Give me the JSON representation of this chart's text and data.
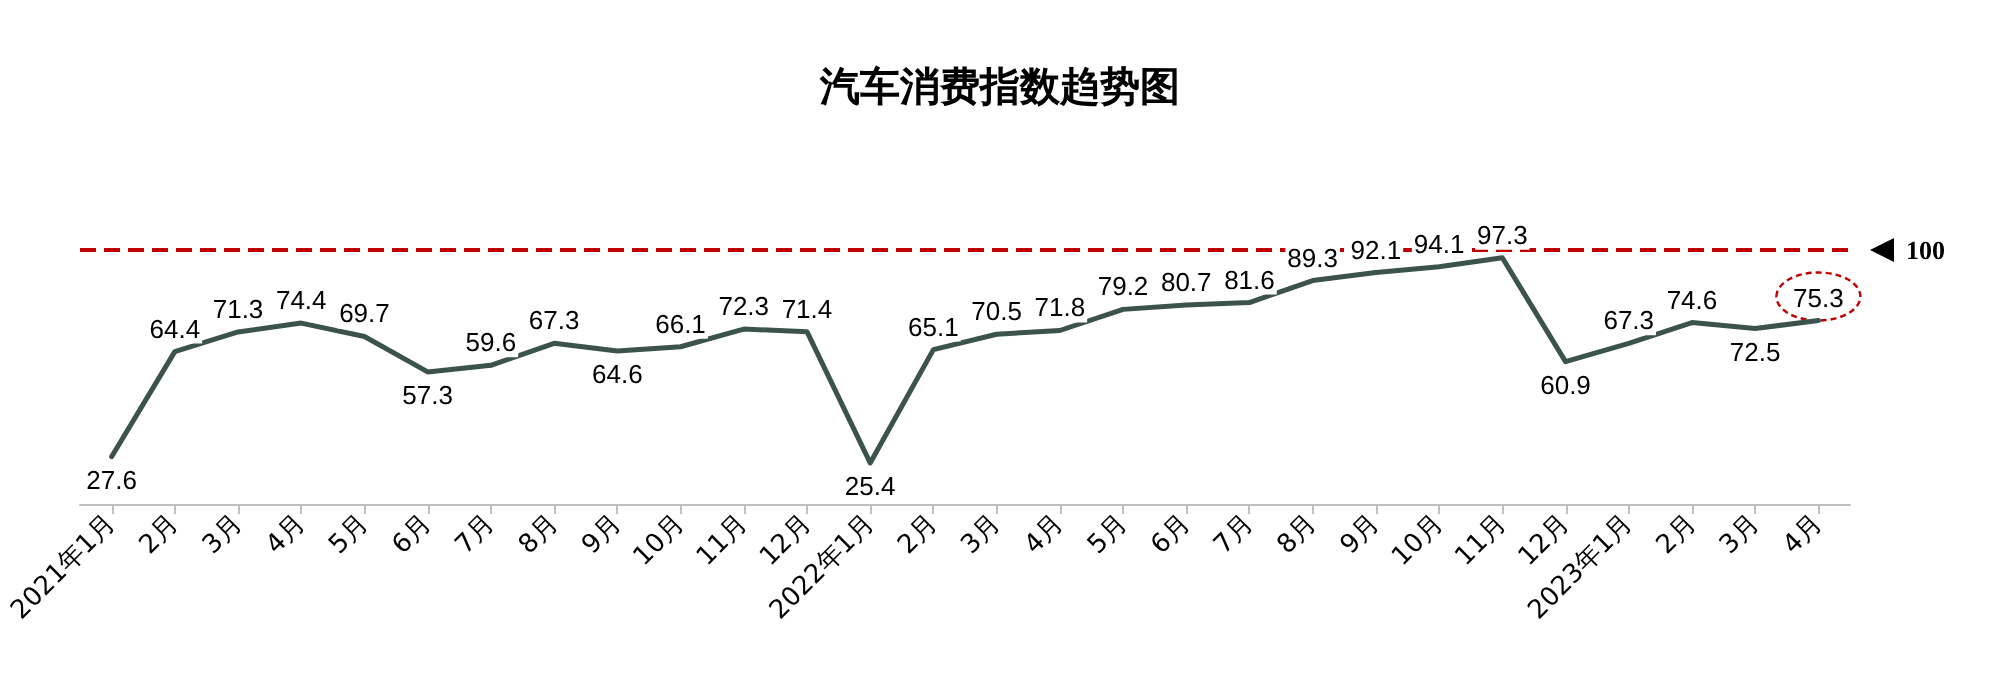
{
  "chart_data": {
    "type": "line",
    "title": "汽车消费指数趋势图",
    "categories": [
      "2021年1月",
      "2月",
      "3月",
      "4月",
      "5月",
      "6月",
      "7月",
      "8月",
      "9月",
      "10月",
      "11月",
      "12月",
      "2022年1月",
      "2月",
      "3月",
      "4月",
      "5月",
      "6月",
      "7月",
      "8月",
      "9月",
      "10月",
      "11月",
      "12月",
      "2023年1月",
      "2月",
      "3月",
      "4月"
    ],
    "series": [
      {
        "color": "#3b524d",
        "values": [
          27.6,
          64.4,
          71.3,
          74.4,
          69.7,
          57.3,
          59.6,
          67.3,
          64.6,
          66.1,
          72.3,
          71.4,
          25.4,
          65.1,
          70.5,
          71.8,
          79.2,
          80.7,
          81.6,
          89.3,
          92.1,
          94.1,
          97.3,
          60.9,
          67.3,
          74.6,
          72.5,
          75.3
        ]
      }
    ],
    "data_labels": true,
    "marker": "none",
    "line_style": "solid",
    "grid": false,
    "ref_lines": [
      {
        "axis": "y",
        "value": 100,
        "label": "100",
        "color": "#c00000",
        "line_style": "dashed"
      }
    ]
  }
}
